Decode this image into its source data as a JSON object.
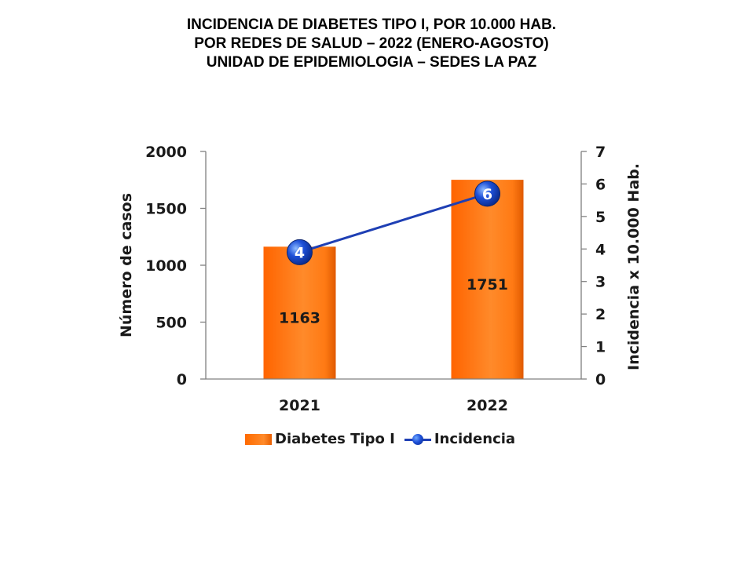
{
  "title_lines": [
    "INCIDENCIA  DE  DIABETES  TIPO  I,  POR  10.000  HAB.",
    "POR  REDES  DE  SALUD  – 2022  (ENERO-AGOSTO)",
    "UNIDAD DE EPIDEMIOLOGIA – SEDES LA PAZ"
  ],
  "chart_data": {
    "type": "bar",
    "categories": [
      "2021",
      "2022"
    ],
    "series": [
      {
        "name": "Diabetes Tipo I",
        "type": "bar",
        "axis": "left",
        "values": [
          1163,
          1751
        ],
        "labels": [
          "1163",
          "1751"
        ],
        "color": "#ff7a10"
      },
      {
        "name": "Incidencia",
        "type": "line",
        "axis": "right",
        "values": [
          3.9,
          5.7
        ],
        "labels": [
          "4",
          "6"
        ],
        "color": "#1e3fb4"
      }
    ],
    "ylabel": "Número de casos",
    "y2label": "Incidencia x 10.000 Hab.",
    "ylim": [
      0,
      2000
    ],
    "yticks": [
      "0",
      "500",
      "1000",
      "1500",
      "2000"
    ],
    "y2lim": [
      0,
      7
    ],
    "y2ticks": [
      "0",
      "1",
      "2",
      "3",
      "4",
      "5",
      "6",
      "7"
    ],
    "grid": false,
    "legend": "bottom"
  }
}
